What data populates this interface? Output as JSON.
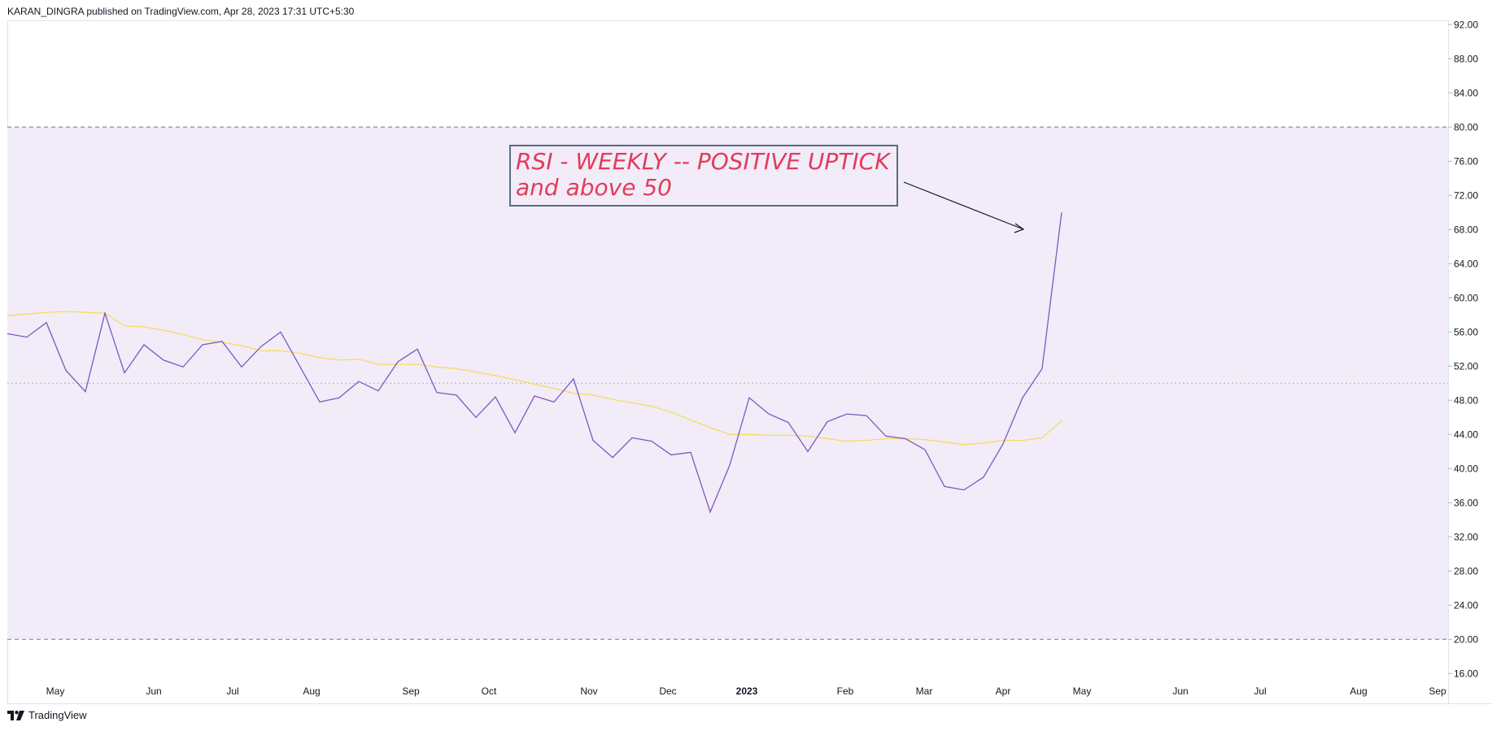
{
  "header": {
    "published_by": "KARAN_DINGRA published on TradingView.com, Apr 28, 2023 17:31 UTC+5:30"
  },
  "brand": {
    "label": "TradingView",
    "icon": "tradingview-logo-icon"
  },
  "annotation": {
    "line1": "RSI - WEEKLY -- POSITIVE UPTICK",
    "line2": "and above 50"
  },
  "colors": {
    "rsi_line": "#7e57c2",
    "ma_line": "#f7dc5e",
    "band_fill": "#f1ecf8",
    "band_lines": "#787b86",
    "annotation_text": "#e33b59",
    "annotation_border": "#5d6a80"
  },
  "chart_data": {
    "type": "line",
    "y_axis": {
      "ticks": [
        "92.00",
        "88.00",
        "84.00",
        "80.00",
        "76.00",
        "72.00",
        "68.00",
        "64.00",
        "60.00",
        "56.00",
        "52.00",
        "48.00",
        "44.00",
        "40.00",
        "36.00",
        "32.00",
        "28.00",
        "24.00",
        "20.00",
        "16.00"
      ],
      "range": [
        12.5,
        92.5
      ],
      "side": "right"
    },
    "x_axis": {
      "ticks": [
        {
          "label": "May",
          "bold": false
        },
        {
          "label": "Jun",
          "bold": false
        },
        {
          "label": "Jul",
          "bold": false
        },
        {
          "label": "Aug",
          "bold": false
        },
        {
          "label": "Sep",
          "bold": false
        },
        {
          "label": "Oct",
          "bold": false
        },
        {
          "label": "Nov",
          "bold": false
        },
        {
          "label": "Dec",
          "bold": false
        },
        {
          "label": "2023",
          "bold": true
        },
        {
          "label": "Feb",
          "bold": false
        },
        {
          "label": "Mar",
          "bold": false
        },
        {
          "label": "Apr",
          "bold": false
        },
        {
          "label": "May",
          "bold": false
        },
        {
          "label": "Jun",
          "bold": false
        },
        {
          "label": "Jul",
          "bold": false
        },
        {
          "label": "Aug",
          "bold": false
        },
        {
          "label": "Sep",
          "bold": false
        }
      ]
    },
    "bands": {
      "upper": 80,
      "middle": 50,
      "lower": 20
    },
    "series": [
      {
        "values": [
          55.8,
          55.4,
          57.1,
          51.5,
          49.0,
          58.2,
          51.2,
          54.5,
          52.7,
          51.9,
          54.5,
          54.9,
          51.9,
          54.3,
          56.0,
          51.9,
          47.8,
          48.3,
          50.2,
          49.1,
          52.5,
          54.0,
          48.9,
          48.6,
          46.0,
          48.4,
          44.2,
          48.5,
          47.8,
          50.5,
          43.3,
          41.3,
          43.6,
          43.2,
          41.6,
          41.9,
          34.9,
          40.4,
          48.3,
          46.4,
          45.4,
          42.0,
          45.5,
          46.4,
          46.2,
          43.8,
          43.5,
          42.2,
          37.9,
          37.5,
          39.0,
          42.9,
          48.3,
          51.7,
          70.0
        ]
      },
      {
        "values": [
          57.9,
          58.1,
          58.3,
          58.4,
          58.3,
          58.2,
          56.7,
          56.6,
          56.2,
          55.7,
          55.1,
          54.8,
          54.4,
          53.8,
          53.8,
          53.5,
          53.0,
          52.7,
          52.8,
          52.2,
          52.2,
          52.2,
          51.9,
          51.7,
          51.3,
          50.9,
          50.4,
          49.9,
          49.4,
          48.8,
          48.6,
          48.1,
          47.7,
          47.3,
          46.6,
          45.7,
          44.8,
          44.0,
          44.0,
          43.9,
          43.9,
          43.8,
          43.5,
          43.2,
          43.3,
          43.5,
          43.5,
          43.4,
          43.1,
          42.8,
          43.0,
          43.3,
          43.3,
          43.6,
          45.6
        ]
      }
    ]
  }
}
